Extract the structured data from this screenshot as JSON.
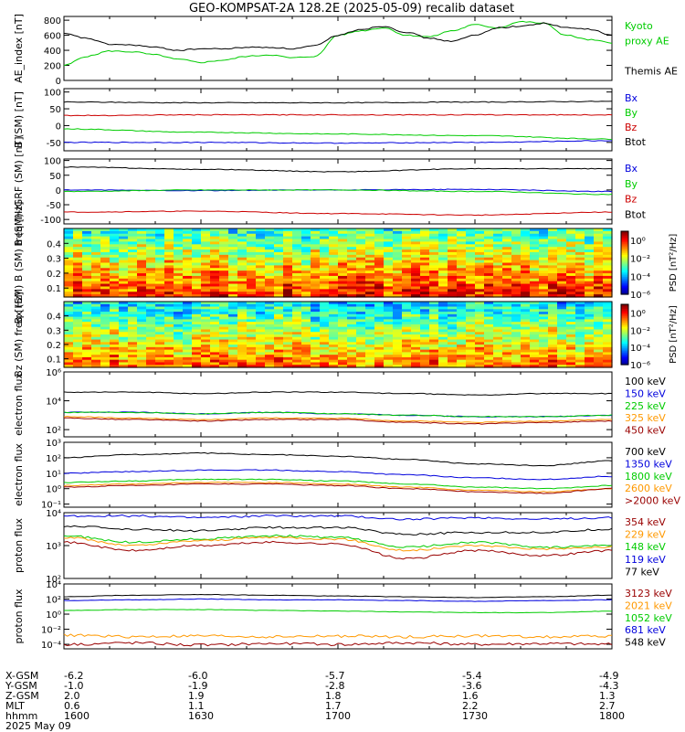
{
  "title": "GEO-KOMPSAT-2A 128.2E (2025-05-09) recalib dataset",
  "colors": {
    "black": "#000000",
    "green": "#00cc00",
    "blue": "#0000dd",
    "red": "#cc0000",
    "orange": "#ff9900",
    "darkred": "#990000"
  },
  "chart_data": [
    {
      "type": "line",
      "ylabel": "AE_index [nT]",
      "yticks": [
        "800",
        "600",
        "400",
        "200",
        "0"
      ],
      "ylim": [
        0,
        850
      ],
      "x": [
        1600,
        1605,
        1610,
        1615,
        1620,
        1625,
        1630,
        1635,
        1640,
        1645,
        1650,
        1655,
        1700,
        1705,
        1710,
        1715,
        1720,
        1725,
        1730,
        1735,
        1740,
        1745,
        1750,
        1755,
        1800
      ],
      "series": [
        {
          "name": "Kyoto proxy AE",
          "color": "green",
          "values": [
            200,
            320,
            390,
            380,
            340,
            280,
            240,
            270,
            320,
            340,
            300,
            320,
            600,
            660,
            700,
            600,
            580,
            660,
            740,
            700,
            780,
            760,
            600,
            540,
            500
          ]
        },
        {
          "name": "Themis AE",
          "color": "black",
          "values": [
            620,
            560,
            480,
            470,
            440,
            400,
            420,
            420,
            440,
            440,
            420,
            460,
            600,
            680,
            720,
            640,
            560,
            520,
            600,
            700,
            720,
            760,
            700,
            680,
            600
          ]
        }
      ],
      "legend_lines": [
        {
          "text": "Kyoto",
          "color": "green"
        },
        {
          "text": "proxy AE",
          "color": "green"
        },
        {
          "text": "",
          "color": "black"
        },
        {
          "text": "Themis AE",
          "color": "black"
        }
      ]
    },
    {
      "type": "line",
      "ylabel": "B (SM) [nT]",
      "yticks": [
        "100",
        "50",
        "0",
        "-50"
      ],
      "ylim": [
        -75,
        110
      ],
      "x": [
        1600,
        1630,
        1700,
        1730,
        1800
      ],
      "series": [
        {
          "name": "Bx",
          "color": "black",
          "values": [
            70,
            68,
            68,
            70,
            72
          ]
        },
        {
          "name": "By",
          "color": "red",
          "values": [
            30,
            32,
            32,
            32,
            32
          ]
        },
        {
          "name": "Bz",
          "color": "green",
          "values": [
            -10,
            -20,
            -25,
            -30,
            -40
          ]
        },
        {
          "name": "Btot",
          "color": "blue",
          "values": [
            -50,
            -50,
            -52,
            -50,
            -45
          ]
        }
      ],
      "legend_lines": [
        {
          "text": "Bx",
          "color": "blue"
        },
        {
          "text": "By",
          "color": "green"
        },
        {
          "text": "Bz",
          "color": "red"
        },
        {
          "text": "Btot",
          "color": "black"
        }
      ]
    },
    {
      "type": "line",
      "ylabel": "B (SM)-IGRF (SM) [nT]",
      "yticks": [
        "100",
        "50",
        "0",
        "-50",
        "-100"
      ],
      "ylim": [
        -115,
        105
      ],
      "x": [
        1600,
        1630,
        1700,
        1730,
        1800
      ],
      "series": [
        {
          "name": "Bx",
          "color": "black",
          "values": [
            78,
            70,
            62,
            72,
            72
          ]
        },
        {
          "name": "By",
          "color": "blue",
          "values": [
            0,
            -2,
            0,
            2,
            -5
          ]
        },
        {
          "name": "Bz",
          "color": "green",
          "values": [
            -5,
            0,
            0,
            -5,
            -15
          ]
        },
        {
          "name": "Btot",
          "color": "red",
          "values": [
            -75,
            -72,
            -80,
            -85,
            -75
          ]
        }
      ],
      "legend_lines": [
        {
          "text": "Bx",
          "color": "blue"
        },
        {
          "text": "By",
          "color": "green"
        },
        {
          "text": "Bz",
          "color": "red"
        },
        {
          "text": "Btot",
          "color": "black"
        }
      ]
    },
    {
      "type": "heatmap",
      "ylabel": "Bx (SM) B (SM) freq [Hz]",
      "yticks": [
        "0.4",
        "0.3",
        "0.2",
        "0.1"
      ],
      "ylim": [
        0.04,
        0.5
      ],
      "colorbar": {
        "label": "PSD [nT²/Hz]",
        "ticks": [
          "10⁰",
          "10⁻²",
          "10⁻⁴",
          "10⁻⁶"
        ],
        "range": [
          -6,
          1
        ]
      }
    },
    {
      "type": "heatmap",
      "ylabel": "Bz (SM) freq [Hz]",
      "yticks": [
        "0.4",
        "0.3",
        "0.2",
        "0.1"
      ],
      "ylim": [
        0.04,
        0.5
      ],
      "colorbar": {
        "label": "PSD [nT²/Hz]",
        "ticks": [
          "10⁰",
          "10⁻²",
          "10⁻⁴",
          "10⁻⁶"
        ],
        "range": [
          -6,
          1
        ]
      }
    },
    {
      "type": "line",
      "log": true,
      "ylabel": "electron flux",
      "yticks": [
        "10⁶",
        "10⁴",
        "10²"
      ],
      "ylim_log": [
        1.5,
        6
      ],
      "x": [
        1600,
        1615,
        1630,
        1645,
        1700,
        1715,
        1730,
        1745,
        1800
      ],
      "series": [
        {
          "name": "100 keV",
          "color": "black",
          "values": [
            4.6,
            4.6,
            4.5,
            4.6,
            4.6,
            4.5,
            4.4,
            4.5,
            4.5
          ]
        },
        {
          "name": "150 keV",
          "color": "blue",
          "values": [
            3.2,
            3.2,
            3.1,
            3.2,
            3.1,
            3.0,
            2.9,
            2.9,
            3.0
          ]
        },
        {
          "name": "225 keV",
          "color": "green",
          "values": [
            3.2,
            3.2,
            3.1,
            3.2,
            3.1,
            3.0,
            2.9,
            2.9,
            3.0
          ]
        },
        {
          "name": "325 keV",
          "color": "orange",
          "values": [
            2.9,
            2.8,
            2.7,
            2.8,
            2.8,
            2.6,
            2.5,
            2.6,
            2.7
          ]
        },
        {
          "name": "450 keV",
          "color": "darkred",
          "values": [
            2.8,
            2.7,
            2.6,
            2.7,
            2.7,
            2.5,
            2.4,
            2.5,
            2.6
          ]
        }
      ],
      "legend_lines": [
        {
          "text": "100 keV",
          "color": "black"
        },
        {
          "text": "150 keV",
          "color": "blue"
        },
        {
          "text": "225 keV",
          "color": "green"
        },
        {
          "text": "325 keV",
          "color": "orange"
        },
        {
          "text": "450 keV",
          "color": "darkred"
        }
      ]
    },
    {
      "type": "line",
      "log": true,
      "ylabel": "electron flux",
      "yticks": [
        "10³",
        "10²",
        "10¹",
        "10⁰",
        "10⁻¹"
      ],
      "ylim_log": [
        -1.2,
        3
      ],
      "x": [
        1600,
        1615,
        1630,
        1645,
        1700,
        1715,
        1730,
        1745,
        1800
      ],
      "series": [
        {
          "name": "700 keV",
          "color": "black",
          "values": [
            2.0,
            2.2,
            2.3,
            2.2,
            2.1,
            1.9,
            1.6,
            1.5,
            1.8
          ]
        },
        {
          "name": "1350 keV",
          "color": "blue",
          "values": [
            1.0,
            1.1,
            1.2,
            1.2,
            1.1,
            0.9,
            0.7,
            0.6,
            0.8
          ]
        },
        {
          "name": "1800 keV",
          "color": "green",
          "values": [
            0.4,
            0.5,
            0.6,
            0.6,
            0.5,
            0.3,
            0.1,
            0.0,
            0.2
          ]
        },
        {
          "name": "2600 keV",
          "color": "orange",
          "values": [
            0.2,
            0.3,
            0.4,
            0.4,
            0.3,
            0.1,
            -0.1,
            -0.2,
            0.0
          ]
        },
        {
          "name": ">2000 keV",
          "color": "darkred",
          "values": [
            0.1,
            0.2,
            0.3,
            0.3,
            0.2,
            0.0,
            -0.2,
            -0.3,
            0.0
          ]
        }
      ],
      "legend_lines": [
        {
          "text": "700 keV",
          "color": "black"
        },
        {
          "text": "1350 keV",
          "color": "blue"
        },
        {
          "text": "1800 keV",
          "color": "green"
        },
        {
          "text": "2600 keV",
          "color": "orange"
        },
        {
          "text": ">2000 keV",
          "color": "darkred"
        }
      ]
    },
    {
      "type": "line",
      "log": true,
      "ylabel": "proton flux",
      "yticks": [
        "10⁴",
        "10³",
        "10²"
      ],
      "ylim_log": [
        2,
        4
      ],
      "x": [
        1600,
        1615,
        1630,
        1645,
        1700,
        1715,
        1730,
        1745,
        1800
      ],
      "series": [
        {
          "name": "354 keV",
          "color": "blue",
          "values": [
            3.9,
            3.9,
            3.85,
            3.9,
            3.9,
            3.8,
            3.85,
            3.8,
            3.85
          ]
        },
        {
          "name": "229 keV",
          "color": "black",
          "values": [
            3.6,
            3.5,
            3.45,
            3.55,
            3.55,
            3.35,
            3.4,
            3.4,
            3.5
          ]
        },
        {
          "name": "148 keV",
          "color": "green",
          "values": [
            3.3,
            3.1,
            3.2,
            3.3,
            3.25,
            2.95,
            3.1,
            2.95,
            3.0
          ]
        },
        {
          "name": "119 keV",
          "color": "orange",
          "values": [
            3.25,
            3.0,
            3.15,
            3.25,
            3.2,
            2.85,
            3.0,
            2.9,
            2.95
          ]
        },
        {
          "name": "77 keV",
          "color": "darkred",
          "values": [
            3.1,
            2.85,
            3.0,
            3.1,
            3.05,
            2.6,
            2.85,
            2.7,
            2.85
          ]
        }
      ],
      "legend_lines": [
        {
          "text": "354 keV",
          "color": "darkred"
        },
        {
          "text": "229 keV",
          "color": "orange"
        },
        {
          "text": "148 keV",
          "color": "green"
        },
        {
          "text": "119 keV",
          "color": "blue"
        },
        {
          "text": "77 keV",
          "color": "black"
        }
      ]
    },
    {
      "type": "line",
      "log": true,
      "ylabel": "proton flux",
      "yticks": [
        "10⁴",
        "10²",
        "10⁰",
        "10⁻²",
        "10⁻⁴"
      ],
      "ylim_log": [
        -4.6,
        4
      ],
      "x": [
        1600,
        1615,
        1630,
        1645,
        1700,
        1715,
        1730,
        1745,
        1800
      ],
      "series": [
        {
          "name": "548 keV",
          "color": "black",
          "values": [
            2.3,
            2.5,
            2.6,
            2.5,
            2.4,
            2.3,
            2.2,
            2.3,
            2.5
          ]
        },
        {
          "name": "681 keV",
          "color": "blue",
          "values": [
            1.8,
            1.9,
            2.0,
            1.9,
            1.9,
            1.8,
            1.7,
            1.8,
            1.9
          ]
        },
        {
          "name": "1052 keV",
          "color": "green",
          "values": [
            0.5,
            0.6,
            0.6,
            0.5,
            0.4,
            0.3,
            0.2,
            0.2,
            0.4
          ]
        },
        {
          "name": "2021 keV",
          "color": "orange",
          "values": [
            -2.8,
            -3.0,
            -2.9,
            -3.0,
            -2.9,
            -3.0,
            -2.9,
            -3.0,
            -2.9
          ]
        },
        {
          "name": "3123 keV",
          "color": "darkred",
          "values": [
            -4.0,
            -3.8,
            -4.1,
            -3.9,
            -4.0,
            -3.8,
            -4.0,
            -3.9,
            -4.0
          ]
        }
      ],
      "legend_lines": [
        {
          "text": "3123 keV",
          "color": "darkred"
        },
        {
          "text": "2021 keV",
          "color": "orange"
        },
        {
          "text": "1052 keV",
          "color": "green"
        },
        {
          "text": "681 keV",
          "color": "blue"
        },
        {
          "text": "548 keV",
          "color": "black"
        }
      ]
    }
  ],
  "ephemeris": {
    "rows": [
      {
        "label": "X-GSM",
        "values": [
          "-6.2",
          "-6.0",
          "-5.7",
          "-5.4",
          "-4.9"
        ]
      },
      {
        "label": "Y-GSM",
        "values": [
          "-1.0",
          "-1.9",
          "-2.8",
          "-3.6",
          "-4.3"
        ]
      },
      {
        "label": "Z-GSM",
        "values": [
          "2.0",
          "1.9",
          "1.8",
          "1.6",
          "1.3"
        ]
      },
      {
        "label": "MLT",
        "values": [
          "0.6",
          "1.1",
          "1.7",
          "2.2",
          "2.7"
        ]
      },
      {
        "label": "hhmm",
        "values": [
          "1600",
          "1630",
          "1700",
          "1730",
          "1800"
        ]
      }
    ],
    "date": "2025 May 09"
  }
}
